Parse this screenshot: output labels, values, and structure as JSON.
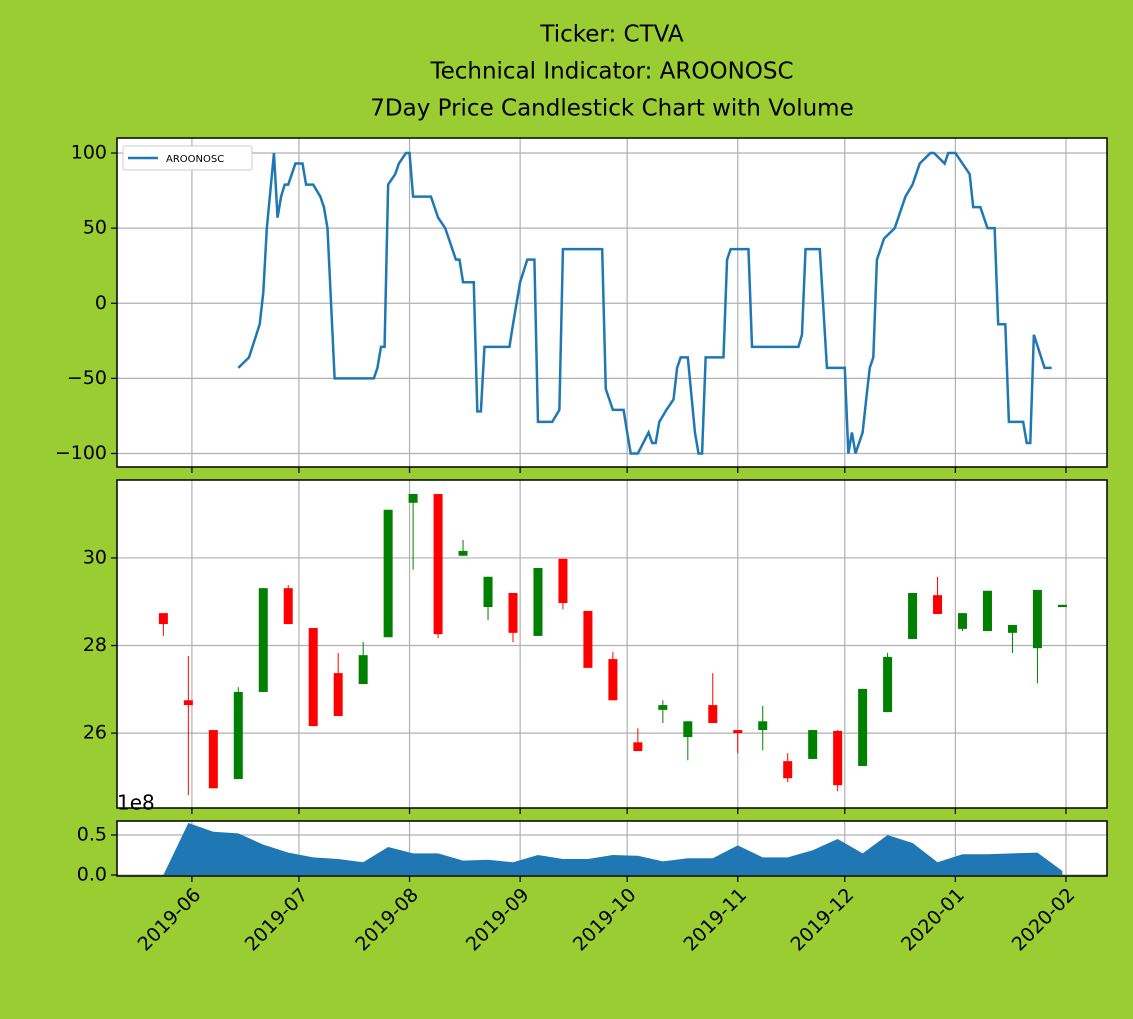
{
  "chart_data": [
    {
      "type": "line",
      "title": [
        "Ticker: CTVA",
        "Technical Indicator: AROONOSC",
        "7Day Price Candlestick Chart with Volume"
      ],
      "legend": "upper left",
      "grid": true,
      "xlim": [
        18027,
        18304.5
      ],
      "ylim": [
        -109,
        110
      ],
      "yticks": [
        {
          "value": -100,
          "label": "−100"
        },
        {
          "value": -50,
          "label": "−50"
        },
        0,
        50,
        100
      ],
      "series": [
        {
          "name": "AROONOSC",
          "color": "#1f77b4",
          "x": [
            18061,
            18064,
            18067,
            18068,
            18069,
            18071,
            18072,
            18073,
            18074,
            18075,
            18077,
            18079,
            18080,
            18082,
            18084,
            18085,
            18086,
            18088,
            18099,
            18100,
            18101,
            18102,
            18103,
            18105,
            18106,
            18108,
            18109,
            18110,
            18115,
            18117,
            18119,
            18120,
            18122,
            18123,
            18124,
            18127,
            18128,
            18129,
            18130,
            18137,
            18138,
            18139,
            18140,
            18142,
            18144,
            18145,
            18149,
            18151,
            18152,
            18163,
            18164,
            18166,
            18169,
            18170,
            18171,
            18173,
            18176,
            18177,
            18178,
            18179,
            18181,
            18183,
            18184,
            18185,
            18187,
            18189,
            18190,
            18191,
            18192,
            18197,
            18198,
            18199,
            18204,
            18205,
            18218,
            18219,
            18220,
            18224,
            18226,
            18231,
            18232,
            18233,
            18234,
            18236,
            18237,
            18238,
            18239,
            18240,
            18242,
            18245,
            18247,
            18248,
            18250,
            18252,
            18255,
            18256,
            18259,
            18260,
            18262,
            18264,
            18266,
            18267,
            18269,
            18271,
            18273,
            18274,
            18276,
            18277,
            18281,
            18282,
            18283,
            18284,
            18287,
            18289
          ],
          "values": [
            -43,
            -36,
            -14,
            7,
            50,
            100,
            57,
            71,
            79,
            79,
            93,
            93,
            79,
            79,
            71,
            64,
            50,
            -50,
            -50,
            -43,
            -29,
            -29,
            79,
            86,
            93,
            100,
            100,
            71,
            71,
            57,
            50,
            43,
            29,
            29,
            14,
            14,
            -72,
            -72,
            -29,
            -29,
            -14,
            0,
            14,
            29,
            29,
            -79,
            -79,
            -71,
            36,
            36,
            -57,
            -71,
            -71,
            -86,
            -100,
            -100,
            -86,
            -93,
            -93,
            -79,
            -71,
            -64,
            -43,
            -36,
            -36,
            -86,
            -100,
            -100,
            -36,
            -36,
            29,
            36,
            36,
            -29,
            -29,
            -21,
            36,
            36,
            -43,
            -43,
            -100,
            -86,
            -100,
            -86,
            -64,
            -43,
            -36,
            29,
            43,
            50,
            64,
            71,
            79,
            93,
            100,
            100,
            93,
            100,
            100,
            93,
            86,
            64,
            64,
            50,
            50,
            -14,
            -14,
            -79,
            -79,
            -93,
            -93,
            -21,
            -43,
            -43
          ]
        }
      ]
    },
    {
      "type": "candlestick",
      "grid": true,
      "up_color": "green",
      "down_color": "red",
      "xlim": [
        18027,
        18304.5
      ],
      "ylim": [
        24.29,
        31.78
      ],
      "yticks": [
        26,
        28,
        30
      ],
      "x": [
        18040,
        18047,
        18054,
        18061,
        18068,
        18075,
        18082,
        18089,
        18096,
        18103,
        18110,
        18117,
        18124,
        18131,
        18138,
        18145,
        18152,
        18159,
        18166,
        18173,
        18180,
        18187,
        18194,
        18201,
        18208,
        18215,
        18222,
        18229,
        18236,
        18243,
        18250,
        18257,
        18264,
        18271,
        18278,
        18285,
        18292
      ],
      "open": [
        28.74,
        26.75,
        26.07,
        24.95,
        26.94,
        29.31,
        28.4,
        27.37,
        27.12,
        28.19,
        31.26,
        31.46,
        30.05,
        28.88,
        29.2,
        28.22,
        29.98,
        28.79,
        27.69,
        25.79,
        26.53,
        25.91,
        26.64,
        26.07,
        26.07,
        25.36,
        25.41,
        26.05,
        25.25,
        26.48,
        28.15,
        29.15,
        28.38,
        28.33,
        28.29,
        27.94,
        28.88
      ],
      "high": [
        28.74,
        27.76,
        26.07,
        27.05,
        29.31,
        29.38,
        28.4,
        27.83,
        28.08,
        31.1,
        31.46,
        31.46,
        30.41,
        29.57,
        29.2,
        29.77,
        29.98,
        28.79,
        27.85,
        26.11,
        26.75,
        26.27,
        27.37,
        26.07,
        26.62,
        25.54,
        26.07,
        26.07,
        27.01,
        27.83,
        29.2,
        29.57,
        28.74,
        29.25,
        28.47,
        29.27,
        28.93
      ],
      "low": [
        28.22,
        24.58,
        24.74,
        24.95,
        26.94,
        28.49,
        26.16,
        26.39,
        27.12,
        28.19,
        29.73,
        28.17,
        30.05,
        28.58,
        28.08,
        28.22,
        28.83,
        27.49,
        26.75,
        25.59,
        26.23,
        25.38,
        26.23,
        25.54,
        25.61,
        24.88,
        25.41,
        24.67,
        25.25,
        26.48,
        28.15,
        28.72,
        28.33,
        28.33,
        27.83,
        27.14,
        28.88
      ],
      "close": [
        28.49,
        26.64,
        24.74,
        26.94,
        29.31,
        28.49,
        26.16,
        26.39,
        27.78,
        31.1,
        31.46,
        28.26,
        30.16,
        29.57,
        28.29,
        29.77,
        28.97,
        27.49,
        26.75,
        25.59,
        26.64,
        26.27,
        26.23,
        26.0,
        26.27,
        24.97,
        26.07,
        24.81,
        27.01,
        27.74,
        29.2,
        28.72,
        28.74,
        29.25,
        28.47,
        29.27,
        28.93
      ]
    },
    {
      "type": "area",
      "grid": true,
      "color": "#1f77b4",
      "offset_label": "1e8",
      "xlim": [
        18027,
        18304.5
      ],
      "ylim": [
        -0.0125,
        0.675
      ],
      "yticks": [
        {
          "value": 0,
          "label": "0.0"
        },
        0.5
      ],
      "xticks": [
        {
          "value": 18048,
          "label": "2019-06"
        },
        {
          "value": 18078,
          "label": "2019-07"
        },
        {
          "value": 18109,
          "label": "2019-08"
        },
        {
          "value": 18140,
          "label": "2019-09"
        },
        {
          "value": 18170,
          "label": "2019-10"
        },
        {
          "value": 18201,
          "label": "2019-11"
        },
        {
          "value": 18231,
          "label": "2019-12"
        },
        {
          "value": 18262,
          "label": "2020-01"
        },
        {
          "value": 18293,
          "label": "2020-02"
        }
      ],
      "x": [
        18040,
        18047,
        18054,
        18061,
        18068,
        18075,
        18082,
        18089,
        18096,
        18103,
        18110,
        18117,
        18124,
        18131,
        18138,
        18145,
        18152,
        18159,
        18166,
        18173,
        18180,
        18187,
        18194,
        18201,
        18208,
        18215,
        18222,
        18229,
        18236,
        18243,
        18250,
        18257,
        18264,
        18271,
        18278,
        18285,
        18292
      ],
      "values": [
        0,
        0.65,
        0.54,
        0.52,
        0.38,
        0.28,
        0.22,
        0.2,
        0.16,
        0.35,
        0.27,
        0.27,
        0.18,
        0.19,
        0.16,
        0.25,
        0.2,
        0.2,
        0.25,
        0.24,
        0.17,
        0.21,
        0.21,
        0.37,
        0.22,
        0.22,
        0.31,
        0.45,
        0.27,
        0.5,
        0.4,
        0.16,
        0.26,
        0.26,
        0.27,
        0.28,
        0.05
      ]
    }
  ]
}
